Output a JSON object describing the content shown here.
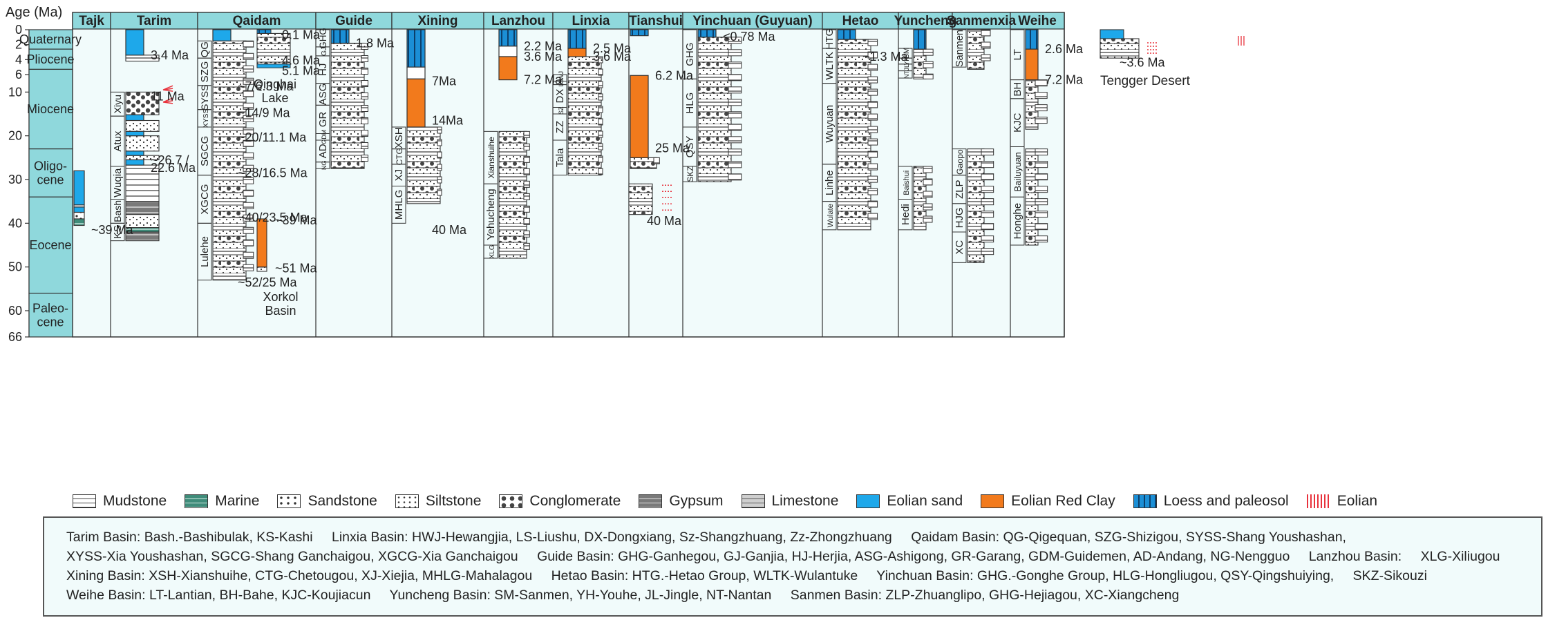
{
  "y_axis": {
    "label": "Age (Ma)",
    "ticks": [
      0,
      2,
      4,
      6,
      10,
      20,
      30,
      40,
      50,
      60,
      66
    ]
  },
  "epochs": [
    {
      "name": "Quaternary",
      "top": 0,
      "bottom": 2.6
    },
    {
      "name": "Pliocene",
      "top": 2.6,
      "bottom": 5.3
    },
    {
      "name": "Miocene",
      "top": 5.3,
      "bottom": 23
    },
    {
      "name": "Oligo-cene",
      "top": 23,
      "bottom": 34
    },
    {
      "name": "Eocene",
      "top": 34,
      "bottom": 56
    },
    {
      "name": "Paleo-cene",
      "top": 56,
      "bottom": 66
    }
  ],
  "colors": {
    "header": "#8fd8dc",
    "panel": "#f1fbfb",
    "eolian_sand": "#1ea8ea",
    "red_clay": "#f27a1c",
    "loess": "#1b8fd6",
    "eolian_mark": "#e8323c"
  },
  "basins": [
    {
      "name": "Tajk",
      "formations": [],
      "bars": [
        {
          "type": "sand",
          "top": 28,
          "bottom": 35.8
        },
        {
          "type": "sand",
          "top": 36.3,
          "bottom": 37.5
        }
      ],
      "strata": [
        {
          "top": 35.8,
          "bottom": 36.3,
          "type": "mud"
        },
        {
          "top": 37.5,
          "bottom": 39,
          "type": "sand"
        },
        {
          "top": 39,
          "bottom": 40.5,
          "type": "marine"
        }
      ],
      "labels": [
        {
          "text": "~39 Ma",
          "age": 41.5
        }
      ],
      "eolian": []
    },
    {
      "name": "Tarim",
      "formations": [
        {
          "name": "Xiyu",
          "top": 10,
          "bottom": 15.5
        },
        {
          "name": "Atux",
          "top": 15.5,
          "bottom": 27
        },
        {
          "name": "Wuqia",
          "top": 27,
          "bottom": 34.5
        },
        {
          "name": "Bash",
          "top": 34.5,
          "bottom": 40
        },
        {
          "name": "KS",
          "top": 40,
          "bottom": 44
        }
      ],
      "bars": [
        {
          "type": "sand",
          "top": 0,
          "bottom": 3.4
        },
        {
          "type": "sand",
          "top": 15.2,
          "bottom": 16.5
        },
        {
          "type": "sand",
          "top": 19,
          "bottom": 20
        },
        {
          "type": "sand",
          "top": 23.5,
          "bottom": 24.5
        },
        {
          "type": "sand",
          "top": 25.5,
          "bottom": 26.7
        }
      ],
      "strata": [
        {
          "top": 3.4,
          "bottom": 4.2,
          "type": "mud"
        },
        {
          "top": 10,
          "bottom": 15.2,
          "type": "cong"
        },
        {
          "top": 16.5,
          "bottom": 19,
          "type": "silt"
        },
        {
          "top": 20,
          "bottom": 23.5,
          "type": "silt"
        },
        {
          "top": 24.5,
          "bottom": 25.5,
          "type": "silt"
        },
        {
          "top": 26.7,
          "bottom": 35,
          "type": "mud"
        },
        {
          "top": 35,
          "bottom": 38,
          "type": "gyp"
        },
        {
          "top": 38,
          "bottom": 41,
          "type": "silt"
        },
        {
          "top": 41,
          "bottom": 42,
          "type": "marine"
        },
        {
          "top": 42,
          "bottom": 44,
          "type": "gyp"
        }
      ],
      "labels": [
        {
          "text": "3.4 Ma",
          "age": 3.4
        },
        {
          "text": "11 Ma",
          "age": 11
        },
        {
          "text": "~26.7 /",
          "age": 25.6
        },
        {
          "text": "22.6 Ma",
          "age": 27.3
        }
      ],
      "eolian": [
        {
          "age": 9.5
        },
        {
          "age": 12.3
        }
      ]
    },
    {
      "name": "Qaidam",
      "formations": [
        {
          "name": "QG",
          "top": 1.5,
          "bottom": 3.8
        },
        {
          "name": "SZG",
          "top": 3.8,
          "bottom": 8.5
        },
        {
          "name": "SYSS",
          "top": 8.5,
          "bottom": 14
        },
        {
          "name": "XYSS",
          "top": 14,
          "bottom": 18
        },
        {
          "name": "SGCG",
          "top": 18,
          "bottom": 29
        },
        {
          "name": "XGCG",
          "top": 29,
          "bottom": 40
        },
        {
          "name": "Lulehe",
          "top": 40,
          "bottom": 53
        }
      ],
      "bars": [
        {
          "type": "sand",
          "top": 0,
          "bottom": 1.5
        }
      ],
      "strata": [
        {
          "top": 1.5,
          "bottom": 53,
          "type": "mixed"
        }
      ],
      "labels": [
        {
          "text": "~7/6.3 Ma",
          "age": 8.7
        },
        {
          "text": "~14/9 Ma",
          "age": 14.8
        },
        {
          "text": "~20/11.1 Ma",
          "age": 20.4
        },
        {
          "text": "~28/16.5 Ma",
          "age": 28.5
        },
        {
          "text": "~40/23.5 Ma",
          "age": 38.7
        },
        {
          "text": "~52/25 Ma",
          "age": 53.5
        }
      ],
      "eolian": []
    },
    {
      "name": "Guide",
      "formations": [
        {
          "name": "GHG",
          "top": 0,
          "bottom": 2.3
        },
        {
          "name": "GJ",
          "top": 2.3,
          "bottom": 3.5
        },
        {
          "name": "HJ",
          "top": 3.5,
          "bottom": 8
        },
        {
          "name": "ASG",
          "top": 8,
          "bottom": 13
        },
        {
          "name": "GR",
          "top": 13,
          "bottom": 19.5
        },
        {
          "name": "GDM",
          "top": 19.5,
          "bottom": 21
        },
        {
          "name": "AD",
          "top": 21,
          "bottom": 26
        },
        {
          "name": "NG",
          "top": 26,
          "bottom": 27.5
        }
      ],
      "bars": [
        {
          "type": "loess",
          "top": 0,
          "bottom": 1.8
        }
      ],
      "strata": [
        {
          "top": 1.8,
          "bottom": 27.5,
          "type": "mixed"
        }
      ],
      "labels": [
        {
          "text": "1.8 Ma",
          "age": 1.8
        }
      ],
      "eolian": []
    },
    {
      "name": "Xining",
      "formations": [
        {
          "name": "XSH",
          "top": 18,
          "bottom": 23
        },
        {
          "name": "CTG",
          "top": 23,
          "bottom": 26.5
        },
        {
          "name": "XJ",
          "top": 26.5,
          "bottom": 31.5
        },
        {
          "name": "MHLG",
          "top": 31.5,
          "bottom": 40
        }
      ],
      "bars": [
        {
          "type": "loess",
          "top": 0,
          "bottom": 5
        },
        {
          "type": "white",
          "top": 5,
          "bottom": 7
        },
        {
          "type": "clay",
          "top": 7,
          "bottom": 18
        }
      ],
      "strata": [
        {
          "top": 18,
          "bottom": 35.5,
          "type": "mixed"
        }
      ],
      "labels": [
        {
          "text": "7Ma",
          "age": 7.5
        },
        {
          "text": "14Ma",
          "age": 16.5
        },
        {
          "text": "40 Ma",
          "age": 41.5
        }
      ],
      "eolian": []
    },
    {
      "name": "Lanzhou",
      "formations": [
        {
          "name": "Xianshuihe",
          "top": 19,
          "bottom": 31
        },
        {
          "name": "Yehucheng",
          "top": 31,
          "bottom": 45
        },
        {
          "name": "XLG",
          "top": 45,
          "bottom": 48
        }
      ],
      "bars": [
        {
          "type": "loess",
          "top": 0,
          "bottom": 2.2
        },
        {
          "type": "white",
          "top": 2.2,
          "bottom": 3.6
        },
        {
          "type": "clay",
          "top": 3.6,
          "bottom": 7.2
        }
      ],
      "strata": [
        {
          "top": 19,
          "bottom": 48,
          "type": "mixed"
        }
      ],
      "labels": [
        {
          "text": "2.2 Ma",
          "age": 2.2
        },
        {
          "text": "3.6 Ma",
          "age": 3.6
        },
        {
          "text": "7.2 Ma",
          "age": 7.2
        }
      ],
      "eolian": []
    },
    {
      "name": "Linxia",
      "formations": [
        {
          "name": "HWJ",
          "top": 6,
          "bottom": 7.5
        },
        {
          "name": "LS",
          "top": 7.5,
          "bottom": 8.3
        },
        {
          "name": "DX",
          "top": 8.3,
          "bottom": 13.5
        },
        {
          "name": "SZ",
          "top": 13.5,
          "bottom": 15
        },
        {
          "name": "ZZ",
          "top": 15,
          "bottom": 21
        },
        {
          "name": "Tala",
          "top": 21,
          "bottom": 29
        }
      ],
      "bars": [
        {
          "type": "loess",
          "top": 0,
          "bottom": 2.5
        },
        {
          "type": "clay",
          "top": 2.5,
          "bottom": 3.6
        }
      ],
      "strata": [
        {
          "top": 3.6,
          "bottom": 29,
          "type": "mixed"
        }
      ],
      "labels": [
        {
          "text": "2.5 Ma",
          "age": 2.5
        },
        {
          "text": "3.6 Ma",
          "age": 3.6
        }
      ],
      "eolian": []
    },
    {
      "name": "Tianshui",
      "formations": [],
      "bars": [
        {
          "type": "loess",
          "top": 0,
          "bottom": 0.8
        },
        {
          "type": "clay",
          "top": 6.2,
          "bottom": 25
        }
      ],
      "strata": [
        {
          "top": 25,
          "bottom": 27.5,
          "type": "mixed"
        }
      ],
      "labels": [
        {
          "text": "6.2 Ma",
          "age": 6.2
        },
        {
          "text": "25 Ma",
          "age": 22.8
        }
      ],
      "eolian": []
    },
    {
      "name": "Yinchuan (Guyuan)",
      "formations": [
        {
          "name": "GHG",
          "top": 0,
          "bottom": 7
        },
        {
          "name": "HLG",
          "top": 7,
          "bottom": 18
        },
        {
          "name": "QSY",
          "top": 18,
          "bottom": 27
        },
        {
          "name": "SKZ",
          "top": 27,
          "bottom": 30.5
        }
      ],
      "bars": [
        {
          "type": "loess",
          "top": 0,
          "bottom": 1
        }
      ],
      "strata": [
        {
          "top": 1,
          "bottom": 30.5,
          "type": "mixed"
        }
      ],
      "labels": [
        {
          "text": "<0.78 Ma",
          "age": 0.9
        }
      ],
      "eolian": []
    },
    {
      "name": "Hetao",
      "formations": [
        {
          "name": "HTG",
          "top": 0,
          "bottom": 2.5
        },
        {
          "name": "WLTK",
          "top": 2.5,
          "bottom": 8
        },
        {
          "name": "Wuyuan",
          "top": 8,
          "bottom": 26.5
        },
        {
          "name": "Linhe",
          "top": 26.5,
          "bottom": 35
        },
        {
          "name": "Wulate",
          "top": 35,
          "bottom": 41.5
        }
      ],
      "bars": [
        {
          "type": "loess",
          "top": 0,
          "bottom": 1.3
        }
      ],
      "strata": [
        {
          "top": 1.3,
          "bottom": 41.5,
          "type": "mixed"
        }
      ],
      "labels": [
        {
          "text": "~1.3 Ma",
          "age": 3.6
        }
      ],
      "eolian": []
    },
    {
      "name": "Yuncheng",
      "formations": [
        {
          "name": "SM",
          "top": 2.5,
          "bottom": 3.8
        },
        {
          "name": "YH",
          "top": 3.8,
          "bottom": 4.6
        },
        {
          "name": "JL",
          "top": 4.6,
          "bottom": 5.5
        },
        {
          "name": "NT",
          "top": 5.5,
          "bottom": 6.8
        },
        {
          "name": "Baishui",
          "top": 27,
          "bottom": 34.5
        },
        {
          "name": "Hedi",
          "top": 34.5,
          "bottom": 41.5
        }
      ],
      "bars": [
        {
          "type": "loess",
          "top": 0,
          "bottom": 2.6
        }
      ],
      "strata": [
        {
          "top": 2.6,
          "bottom": 7,
          "type": "mixed"
        },
        {
          "top": 27,
          "bottom": 41.5,
          "type": "mixed"
        }
      ],
      "labels": [],
      "eolian": []
    },
    {
      "name": "Sanmenxia",
      "formations": [
        {
          "name": "Sanmen",
          "top": 0,
          "bottom": 5
        },
        {
          "name": "Gaopo",
          "top": 23,
          "bottom": 29
        },
        {
          "name": "ZLP",
          "top": 29,
          "bottom": 35.5
        },
        {
          "name": "HJG",
          "top": 35.5,
          "bottom": 42
        },
        {
          "name": "XC",
          "top": 42,
          "bottom": 49
        }
      ],
      "bars": [],
      "strata": [
        {
          "top": 0,
          "bottom": 5.3,
          "type": "mixed"
        },
        {
          "top": 23,
          "bottom": 49,
          "type": "mixed"
        }
      ],
      "labels": [],
      "eolian": []
    },
    {
      "name": "Weihe",
      "formations": [
        {
          "name": "LT",
          "top": 0,
          "bottom": 7.2
        },
        {
          "name": "BH",
          "top": 7.2,
          "bottom": 11.5
        },
        {
          "name": "KJC",
          "top": 11.5,
          "bottom": 22.5
        },
        {
          "name": "Bailuyuan",
          "top": 22.5,
          "bottom": 34
        },
        {
          "name": "Honghe",
          "top": 34,
          "bottom": 45
        }
      ],
      "bars": [
        {
          "type": "loess",
          "top": 0,
          "bottom": 2.6
        },
        {
          "type": "clay",
          "top": 2.6,
          "bottom": 7.2
        }
      ],
      "strata": [
        {
          "top": 7.2,
          "bottom": 18.5,
          "type": "mixed"
        },
        {
          "top": 23,
          "bottom": 45,
          "type": "mixed"
        }
      ],
      "labels": [
        {
          "text": "2.6 Ma",
          "age": 2.6
        },
        {
          "text": "7.2 Ma",
          "age": 7.2
        }
      ],
      "eolian": []
    }
  ],
  "floating_columns": [
    {
      "id": "qinghai",
      "labels": [
        "0.1 Ma",
        "4.6 Ma",
        "5.1 Ma",
        "Qinghai",
        "Lake"
      ]
    },
    {
      "id": "xorkol",
      "labels": [
        "~39 Ma",
        "~51 Ma",
        "Xorkol",
        "Basin"
      ]
    },
    {
      "id": "tengger",
      "labels": [
        "~3.6 Ma",
        "Tengger Desert"
      ]
    },
    {
      "id": "xining-extra",
      "labels": [
        "40 Ma"
      ]
    }
  ],
  "legend": [
    {
      "label": "Mudstone",
      "pattern": "mud"
    },
    {
      "label": "Marine",
      "pattern": "marine"
    },
    {
      "label": "Sandstone",
      "pattern": "sandstone"
    },
    {
      "label": "Siltstone",
      "pattern": "silt"
    },
    {
      "label": "Conglomerate",
      "pattern": "cong"
    },
    {
      "label": "Gypsum",
      "pattern": "gyp"
    },
    {
      "label": "Limestone",
      "pattern": "lime"
    },
    {
      "label": "Eolian sand",
      "pattern": "sand"
    },
    {
      "label": "Eolian Red Clay",
      "pattern": "clay"
    },
    {
      "label": "Loess and paleosol",
      "pattern": "loess"
    },
    {
      "label": "Eolian",
      "pattern": "eolian"
    }
  ],
  "abbreviations": [
    "Tarim Basin: Bash.-Bashibulak, KS-Kashi",
    "Linxia Basin: HWJ-Hewangjia, LS-Liushu, DX-Dongxiang, Sz-Shangzhuang, Zz-Zhongzhuang",
    "Qaidam Basin: QG-Qigequan, SZG-Shizigou, SYSS-Shang Youshashan,",
    "XYSS-Xia Youshashan, SGCG-Shang Ganchaigou, XGCG-Xia Ganchaigou",
    "Guide Basin: GHG-Ganhegou, GJ-Ganjia, HJ-Herjia, ASG-Ashigong, GR-Garang, GDM-Guidemen, AD-Andang, NG-Nengguo",
    "Lanzhou Basin:",
    "XLG-Xiliugou",
    "Xining Basin: XSH-Xianshuihe, CTG-Chetougou, XJ-Xiejia, MHLG-Mahalagou",
    "Hetao Basin: HTG.-Hetao Group, WLTK-Wulantuke",
    "Yinchuan Basin: GHG.-Gonghe Group, HLG-Hongliugou, QSY-Qingshuiying,",
    "SKZ-Sikouzi",
    "Weihe Basin: LT-Lantian, BH-Bahe, KJC-Koujiacun",
    "Yuncheng Basin: SM-Sanmen, YH-Youhe, JL-Jingle, NT-Nantan",
    "Sanmen Basin: ZLP-Zhuanglipo, GHG-Hejiagou, XC-Xiangcheng"
  ]
}
